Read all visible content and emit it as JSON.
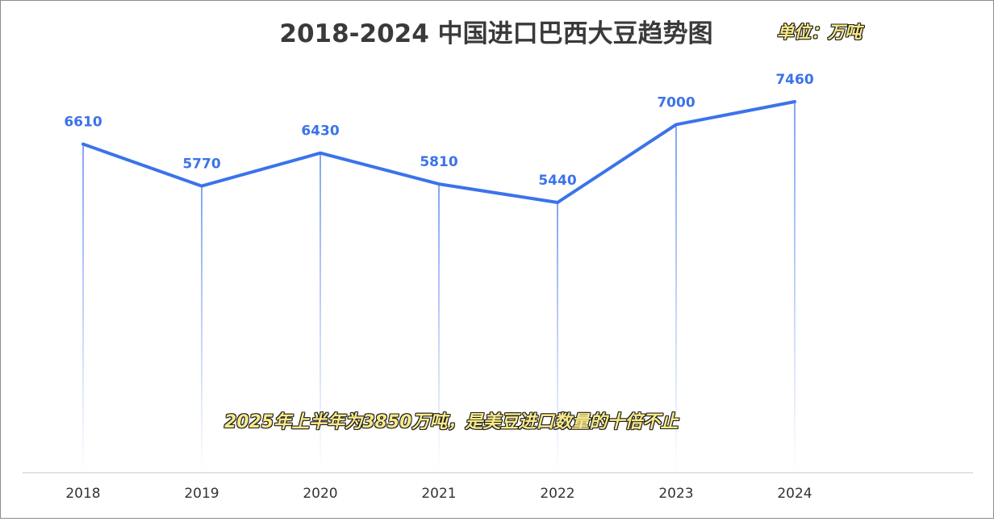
{
  "chart_data": {
    "type": "line",
    "title": "2018-2024 中国进口巴西大豆趋势图",
    "unit_label": "单位：万吨",
    "annotation": "2025年上半年为3850万吨，是美豆进口数量的十倍不止",
    "categories": [
      "2018",
      "2019",
      "2020",
      "2021",
      "2022",
      "2023",
      "2024"
    ],
    "series": [
      {
        "values": [
          6610,
          5770,
          6430,
          5810,
          5440,
          7000,
          7460
        ]
      }
    ],
    "data_labels": [
      "6610",
      "5770",
      "6430",
      "5810",
      "5440",
      "7000",
      "7460"
    ],
    "xlabel": "",
    "ylabel": "",
    "ylim": [
      0,
      8500
    ],
    "grid": false,
    "legend": "none",
    "colors": {
      "line": "#3b73ea",
      "drop_line": "#3b73ea",
      "axis": "#d9d9d9",
      "annotation_fill": "#f7e98a",
      "annotation_stroke": "#1a1a1a"
    }
  }
}
